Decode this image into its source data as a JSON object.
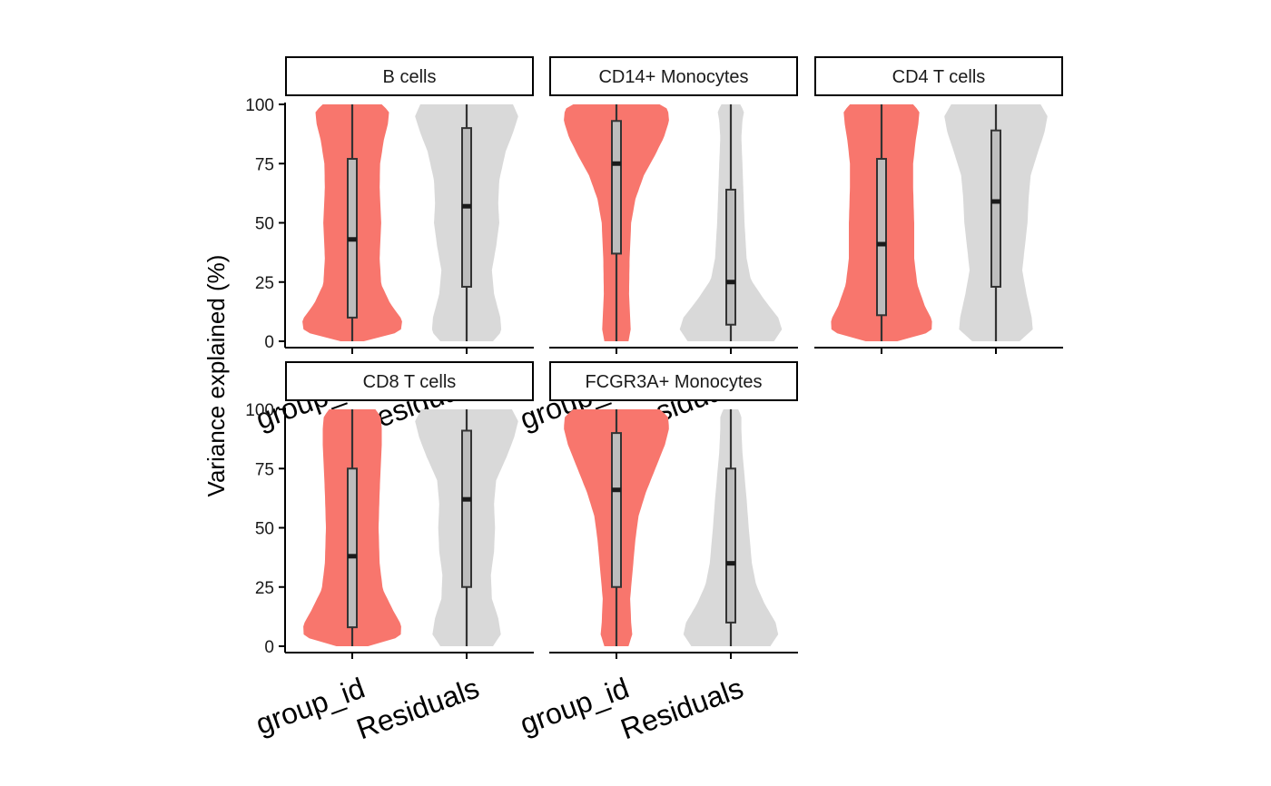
{
  "chart_data": {
    "type": "violin",
    "ylabel": "Variance explained (%)",
    "xlabel": "",
    "ylim": [
      0,
      100
    ],
    "yticks": [
      0,
      25,
      50,
      75,
      100
    ],
    "categories": [
      "group_id",
      "Residuals"
    ],
    "colors": {
      "group_id": "#f8766d",
      "Residuals": "#d9d9d9",
      "box_fill": "#bdbdbd",
      "box_line": "#333333"
    },
    "grid": false,
    "legend": "none",
    "facets": [
      {
        "title": "B cells",
        "group_id": {
          "q1": 10,
          "median": 43,
          "q3": 77,
          "min": 0,
          "max": 100,
          "profile": [
            [
              0,
              0.22
            ],
            [
              4,
              0.92
            ],
            [
              9,
              0.95
            ],
            [
              16,
              0.72
            ],
            [
              24,
              0.55
            ],
            [
              35,
              0.52
            ],
            [
              50,
              0.55
            ],
            [
              65,
              0.52
            ],
            [
              75,
              0.53
            ],
            [
              85,
              0.6
            ],
            [
              92,
              0.68
            ],
            [
              97,
              0.7
            ],
            [
              100,
              0.56
            ]
          ]
        },
        "Residuals": {
          "q1": 23,
          "median": 57,
          "q3": 90,
          "min": 0,
          "max": 100,
          "profile": [
            [
              0,
              0.5
            ],
            [
              4,
              0.66
            ],
            [
              10,
              0.64
            ],
            [
              20,
              0.52
            ],
            [
              30,
              0.48
            ],
            [
              40,
              0.56
            ],
            [
              50,
              0.62
            ],
            [
              58,
              0.6
            ],
            [
              68,
              0.62
            ],
            [
              80,
              0.74
            ],
            [
              88,
              0.88
            ],
            [
              95,
              0.98
            ],
            [
              100,
              0.88
            ]
          ]
        }
      },
      {
        "title": "CD14+ Monocytes",
        "group_id": {
          "q1": 37,
          "median": 75,
          "q3": 93,
          "min": 0,
          "max": 100,
          "profile": [
            [
              0,
              0.23
            ],
            [
              5,
              0.27
            ],
            [
              10,
              0.26
            ],
            [
              20,
              0.24
            ],
            [
              35,
              0.25
            ],
            [
              50,
              0.28
            ],
            [
              60,
              0.36
            ],
            [
              70,
              0.52
            ],
            [
              78,
              0.72
            ],
            [
              86,
              0.9
            ],
            [
              93,
              1.0
            ],
            [
              98,
              0.98
            ],
            [
              100,
              0.82
            ]
          ]
        },
        "Residuals": {
          "q1": 7,
          "median": 25,
          "q3": 64,
          "min": 0,
          "max": 100,
          "profile": [
            [
              0,
              0.82
            ],
            [
              5,
              0.97
            ],
            [
              10,
              0.9
            ],
            [
              18,
              0.62
            ],
            [
              26,
              0.38
            ],
            [
              35,
              0.3
            ],
            [
              50,
              0.26
            ],
            [
              62,
              0.24
            ],
            [
              75,
              0.22
            ],
            [
              86,
              0.2
            ],
            [
              93,
              0.22
            ],
            [
              97,
              0.25
            ],
            [
              100,
              0.18
            ]
          ]
        }
      },
      {
        "title": "CD4 T cells",
        "group_id": {
          "q1": 11,
          "median": 41,
          "q3": 77,
          "min": 0,
          "max": 100,
          "profile": [
            [
              0,
              0.3
            ],
            [
              4,
              0.95
            ],
            [
              9,
              0.96
            ],
            [
              15,
              0.82
            ],
            [
              24,
              0.68
            ],
            [
              35,
              0.62
            ],
            [
              50,
              0.62
            ],
            [
              65,
              0.6
            ],
            [
              75,
              0.6
            ],
            [
              85,
              0.65
            ],
            [
              92,
              0.7
            ],
            [
              97,
              0.72
            ],
            [
              100,
              0.6
            ]
          ]
        },
        "Residuals": {
          "q1": 23,
          "median": 59,
          "q3": 89,
          "min": 0,
          "max": 100,
          "profile": [
            [
              0,
              0.45
            ],
            [
              5,
              0.7
            ],
            [
              10,
              0.68
            ],
            [
              20,
              0.58
            ],
            [
              30,
              0.5
            ],
            [
              40,
              0.55
            ],
            [
              50,
              0.6
            ],
            [
              60,
              0.62
            ],
            [
              70,
              0.66
            ],
            [
              80,
              0.8
            ],
            [
              88,
              0.92
            ],
            [
              95,
              0.98
            ],
            [
              100,
              0.85
            ]
          ]
        }
      },
      {
        "title": "CD8 T cells",
        "group_id": {
          "q1": 8,
          "median": 38,
          "q3": 75,
          "min": 0,
          "max": 100,
          "profile": [
            [
              0,
              0.3
            ],
            [
              4,
              0.92
            ],
            [
              9,
              0.93
            ],
            [
              15,
              0.78
            ],
            [
              24,
              0.58
            ],
            [
              35,
              0.52
            ],
            [
              50,
              0.5
            ],
            [
              65,
              0.52
            ],
            [
              75,
              0.54
            ],
            [
              85,
              0.56
            ],
            [
              92,
              0.56
            ],
            [
              97,
              0.54
            ],
            [
              100,
              0.44
            ]
          ]
        },
        "Residuals": {
          "q1": 25,
          "median": 62,
          "q3": 91,
          "min": 0,
          "max": 100,
          "profile": [
            [
              0,
              0.5
            ],
            [
              5,
              0.65
            ],
            [
              12,
              0.6
            ],
            [
              20,
              0.48
            ],
            [
              30,
              0.46
            ],
            [
              40,
              0.52
            ],
            [
              50,
              0.54
            ],
            [
              60,
              0.52
            ],
            [
              70,
              0.56
            ],
            [
              80,
              0.76
            ],
            [
              88,
              0.9
            ],
            [
              95,
              0.98
            ],
            [
              100,
              0.86
            ]
          ]
        }
      },
      {
        "title": "FCGR3A+ Monocytes",
        "group_id": {
          "q1": 25,
          "median": 66,
          "q3": 90,
          "min": 0,
          "max": 100,
          "profile": [
            [
              0,
              0.23
            ],
            [
              5,
              0.3
            ],
            [
              10,
              0.28
            ],
            [
              20,
              0.26
            ],
            [
              30,
              0.3
            ],
            [
              45,
              0.36
            ],
            [
              55,
              0.42
            ],
            [
              65,
              0.56
            ],
            [
              75,
              0.74
            ],
            [
              85,
              0.92
            ],
            [
              92,
              1.0
            ],
            [
              97,
              0.98
            ],
            [
              100,
              0.82
            ]
          ]
        },
        "Residuals": {
          "q1": 10,
          "median": 35,
          "q3": 75,
          "min": 0,
          "max": 100,
          "profile": [
            [
              0,
              0.75
            ],
            [
              5,
              0.9
            ],
            [
              10,
              0.85
            ],
            [
              18,
              0.64
            ],
            [
              26,
              0.48
            ],
            [
              35,
              0.4
            ],
            [
              50,
              0.34
            ],
            [
              62,
              0.3
            ],
            [
              72,
              0.26
            ],
            [
              82,
              0.22
            ],
            [
              92,
              0.2
            ],
            [
              97,
              0.2
            ],
            [
              100,
              0.14
            ]
          ]
        }
      }
    ]
  }
}
